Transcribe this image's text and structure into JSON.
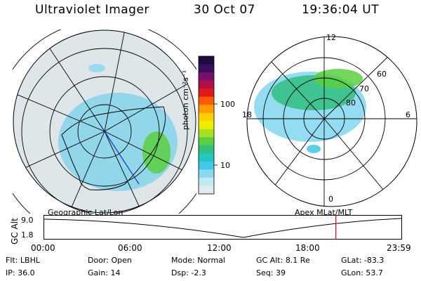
{
  "header": {
    "title": "Ultraviolet Imager",
    "date": "30 Oct 07",
    "time": "19:36:04 UT"
  },
  "colorbar": {
    "unit_label": "photon cm⁻²s⁻¹",
    "ticks": [
      "100",
      "10"
    ],
    "colors": [
      "#1e0a3c",
      "#3a0d5e",
      "#7a0f6a",
      "#b0104a",
      "#e01a1a",
      "#ff5a00",
      "#ff9a00",
      "#ffcf00",
      "#e8f000",
      "#a8e020",
      "#5ad040",
      "#30c080",
      "#20c8c0",
      "#40c8e8",
      "#88d8f0",
      "#c0e8f0",
      "#dcecf0"
    ]
  },
  "geo_plot": {
    "caption": "Geographic Lat/Lon"
  },
  "mag_plot": {
    "caption": "Apex MLat/MLT",
    "hour_labels": {
      "top": "12",
      "left": "18",
      "right": "6",
      "bottom": "0"
    },
    "lat_labels": [
      "80",
      "70",
      "60"
    ]
  },
  "altitude_strip": {
    "y_axis_label": "GC Alt",
    "y_ticks": [
      "9.0",
      "1.8"
    ],
    "x_ticks": [
      "00:00",
      "06:00",
      "12:00",
      "18:00",
      "23:59"
    ],
    "marker_time_hours": 19.6,
    "marker_color": "#e00000"
  },
  "status": {
    "filter": {
      "label": "Flt:",
      "value": "LBHL"
    },
    "ip": {
      "label": "IP:",
      "value": "36.0"
    },
    "door": {
      "label": "Door:",
      "value": "Open"
    },
    "gain": {
      "label": "Gain:",
      "value": "14"
    },
    "mode": {
      "label": "Mode:",
      "value": "Normal"
    },
    "dsp": {
      "label": "Dsp:",
      "value": "-2.3"
    },
    "gc_alt": {
      "label": "GC Alt:",
      "value": "8.1 Re"
    },
    "seq": {
      "label": "Seq:",
      "value": "39"
    },
    "glat": {
      "label": "GLat:",
      "value": "-83.3"
    },
    "glon": {
      "label": "GLon:",
      "value": "53.7"
    }
  }
}
